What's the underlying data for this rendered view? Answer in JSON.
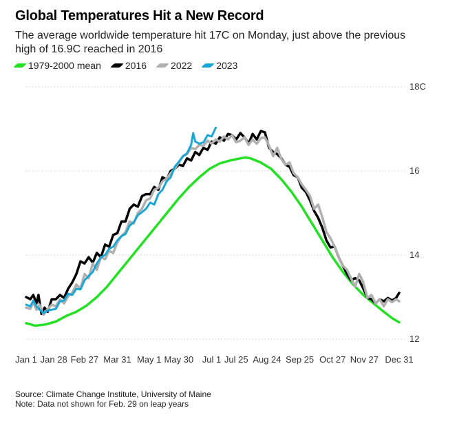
{
  "title": "Global Temperatures Hit a New Record",
  "subtitle": "The average worldwide temperature hit 17C on Monday, just above the previous high of 16.9C reached in 2016",
  "footnotes": {
    "source": "Source: Climate Change Institute, University of Maine",
    "note": "Note: Data not shown for Feb. 29 on leap years"
  },
  "colors": {
    "mean": "#22e022",
    "y2016": "#000000",
    "y2022": "#b0b0b0",
    "y2023": "#1aa6d4",
    "grid": "#c8c8c8"
  },
  "chart_data": {
    "type": "line",
    "title": "Global Temperatures Hit a New Record",
    "xlabel": "",
    "ylabel": "",
    "xlim": [
      1,
      365
    ],
    "ylim": [
      12,
      18
    ],
    "y_ticks": [
      {
        "value": 12,
        "label": "12"
      },
      {
        "value": 14,
        "label": "14"
      },
      {
        "value": 16,
        "label": "16"
      },
      {
        "value": 18,
        "label": "18C"
      }
    ],
    "x_ticks": [
      {
        "day": 1,
        "label": "Jan 1"
      },
      {
        "day": 28,
        "label": "Jan 28"
      },
      {
        "day": 58,
        "label": "Feb 27"
      },
      {
        "day": 90,
        "label": "Mar 31"
      },
      {
        "day": 121,
        "label": "May 1"
      },
      {
        "day": 150,
        "label": "May 30"
      },
      {
        "day": 182,
        "label": "Jul 1"
      },
      {
        "day": 206,
        "label": "Jul 25"
      },
      {
        "day": 236,
        "label": "Aug 24"
      },
      {
        "day": 268,
        "label": "Sep 25"
      },
      {
        "day": 300,
        "label": "Oct 27"
      },
      {
        "day": 331,
        "label": "Nov 27"
      },
      {
        "day": 365,
        "label": "Dec 31"
      }
    ],
    "grid": "horizontal dotted",
    "series": [
      {
        "name": "1979-2000 mean",
        "color_key": "mean",
        "points": [
          [
            1,
            12.38
          ],
          [
            10,
            12.32
          ],
          [
            20,
            12.35
          ],
          [
            30,
            12.42
          ],
          [
            40,
            12.55
          ],
          [
            50,
            12.65
          ],
          [
            60,
            12.8
          ],
          [
            70,
            13.0
          ],
          [
            80,
            13.25
          ],
          [
            90,
            13.55
          ],
          [
            100,
            13.85
          ],
          [
            110,
            14.15
          ],
          [
            120,
            14.45
          ],
          [
            130,
            14.75
          ],
          [
            140,
            15.05
          ],
          [
            150,
            15.35
          ],
          [
            160,
            15.62
          ],
          [
            170,
            15.85
          ],
          [
            180,
            16.05
          ],
          [
            190,
            16.18
          ],
          [
            200,
            16.25
          ],
          [
            210,
            16.3
          ],
          [
            215,
            16.32
          ],
          [
            220,
            16.3
          ],
          [
            230,
            16.2
          ],
          [
            240,
            16.05
          ],
          [
            250,
            15.8
          ],
          [
            260,
            15.5
          ],
          [
            270,
            15.15
          ],
          [
            280,
            14.75
          ],
          [
            290,
            14.35
          ],
          [
            300,
            13.95
          ],
          [
            310,
            13.6
          ],
          [
            320,
            13.3
          ],
          [
            330,
            13.05
          ],
          [
            340,
            12.85
          ],
          [
            350,
            12.65
          ],
          [
            358,
            12.5
          ],
          [
            365,
            12.4
          ]
        ]
      },
      {
        "name": "2016",
        "color_key": "y2016",
        "points": [
          [
            1,
            13.0
          ],
          [
            5,
            12.95
          ],
          [
            8,
            13.05
          ],
          [
            11,
            12.85
          ],
          [
            13,
            13.05
          ],
          [
            16,
            12.6
          ],
          [
            19,
            12.75
          ],
          [
            22,
            12.65
          ],
          [
            26,
            12.95
          ],
          [
            30,
            12.95
          ],
          [
            34,
            13.05
          ],
          [
            38,
            12.98
          ],
          [
            42,
            13.2
          ],
          [
            46,
            13.35
          ],
          [
            50,
            13.55
          ],
          [
            54,
            13.85
          ],
          [
            58,
            13.8
          ],
          [
            62,
            13.95
          ],
          [
            66,
            13.82
          ],
          [
            70,
            14.05
          ],
          [
            74,
            13.95
          ],
          [
            78,
            14.25
          ],
          [
            82,
            14.2
          ],
          [
            86,
            14.48
          ],
          [
            90,
            14.52
          ],
          [
            94,
            14.8
          ],
          [
            98,
            14.8
          ],
          [
            102,
            15.1
          ],
          [
            106,
            15.2
          ],
          [
            110,
            15.15
          ],
          [
            114,
            15.4
          ],
          [
            118,
            15.45
          ],
          [
            122,
            15.45
          ],
          [
            126,
            15.62
          ],
          [
            130,
            15.55
          ],
          [
            134,
            15.85
          ],
          [
            138,
            15.8
          ],
          [
            142,
            16.0
          ],
          [
            146,
            16.05
          ],
          [
            150,
            16.15
          ],
          [
            154,
            16.12
          ],
          [
            158,
            16.3
          ],
          [
            162,
            16.25
          ],
          [
            166,
            16.45
          ],
          [
            170,
            16.38
          ],
          [
            174,
            16.55
          ],
          [
            178,
            16.5
          ],
          [
            182,
            16.7
          ],
          [
            186,
            16.65
          ],
          [
            190,
            16.8
          ],
          [
            194,
            16.72
          ],
          [
            198,
            16.88
          ],
          [
            202,
            16.85
          ],
          [
            206,
            16.75
          ],
          [
            210,
            16.9
          ],
          [
            214,
            16.8
          ],
          [
            218,
            16.65
          ],
          [
            222,
            16.88
          ],
          [
            226,
            16.75
          ],
          [
            230,
            16.95
          ],
          [
            234,
            16.92
          ],
          [
            238,
            16.55
          ],
          [
            242,
            16.45
          ],
          [
            246,
            16.4
          ],
          [
            250,
            16.3
          ],
          [
            254,
            16.15
          ],
          [
            258,
            16.1
          ],
          [
            262,
            15.9
          ],
          [
            266,
            15.85
          ],
          [
            270,
            15.6
          ],
          [
            274,
            15.5
          ],
          [
            278,
            15.3
          ],
          [
            282,
            15.05
          ],
          [
            286,
            14.88
          ],
          [
            290,
            14.65
          ],
          [
            294,
            14.35
          ],
          [
            298,
            14.18
          ],
          [
            302,
            14.2
          ],
          [
            306,
            13.95
          ],
          [
            310,
            13.75
          ],
          [
            314,
            13.55
          ],
          [
            318,
            13.4
          ],
          [
            322,
            13.45
          ],
          [
            326,
            13.4
          ],
          [
            330,
            13.2
          ],
          [
            334,
            12.98
          ],
          [
            338,
            12.95
          ],
          [
            342,
            12.85
          ],
          [
            346,
            12.95
          ],
          [
            350,
            12.9
          ],
          [
            354,
            12.98
          ],
          [
            358,
            12.92
          ],
          [
            362,
            12.98
          ],
          [
            365,
            13.1
          ]
        ]
      },
      {
        "name": "2022",
        "color_key": "y2022",
        "points": [
          [
            1,
            12.75
          ],
          [
            5,
            12.72
          ],
          [
            8,
            12.88
          ],
          [
            11,
            12.7
          ],
          [
            14,
            12.82
          ],
          [
            18,
            12.58
          ],
          [
            22,
            12.72
          ],
          [
            26,
            12.82
          ],
          [
            30,
            12.78
          ],
          [
            34,
            12.95
          ],
          [
            38,
            12.85
          ],
          [
            42,
            13.02
          ],
          [
            46,
            13.1
          ],
          [
            50,
            13.3
          ],
          [
            54,
            13.2
          ],
          [
            58,
            13.55
          ],
          [
            62,
            13.45
          ],
          [
            66,
            13.8
          ],
          [
            70,
            13.65
          ],
          [
            74,
            13.95
          ],
          [
            78,
            13.9
          ],
          [
            82,
            14.1
          ],
          [
            86,
            14.05
          ],
          [
            90,
            14.3
          ],
          [
            94,
            14.45
          ],
          [
            98,
            14.55
          ],
          [
            102,
            14.8
          ],
          [
            106,
            14.75
          ],
          [
            110,
            15.0
          ],
          [
            114,
            15.1
          ],
          [
            118,
            15.3
          ],
          [
            122,
            15.35
          ],
          [
            126,
            15.55
          ],
          [
            130,
            15.6
          ],
          [
            134,
            15.75
          ],
          [
            138,
            15.82
          ],
          [
            142,
            15.95
          ],
          [
            146,
            16.05
          ],
          [
            150,
            16.2
          ],
          [
            154,
            16.35
          ],
          [
            158,
            16.4
          ],
          [
            162,
            16.55
          ],
          [
            166,
            16.52
          ],
          [
            170,
            16.62
          ],
          [
            174,
            16.6
          ],
          [
            178,
            16.72
          ],
          [
            182,
            16.65
          ],
          [
            186,
            16.75
          ],
          [
            190,
            16.7
          ],
          [
            194,
            16.82
          ],
          [
            198,
            16.75
          ],
          [
            202,
            16.85
          ],
          [
            206,
            16.68
          ],
          [
            210,
            16.72
          ],
          [
            214,
            16.8
          ],
          [
            218,
            16.62
          ],
          [
            222,
            16.75
          ],
          [
            226,
            16.65
          ],
          [
            230,
            16.78
          ],
          [
            234,
            16.8
          ],
          [
            238,
            16.6
          ],
          [
            242,
            16.35
          ],
          [
            246,
            16.55
          ],
          [
            250,
            16.28
          ],
          [
            254,
            16.15
          ],
          [
            258,
            16.2
          ],
          [
            262,
            15.95
          ],
          [
            266,
            15.85
          ],
          [
            270,
            15.68
          ],
          [
            274,
            15.55
          ],
          [
            278,
            15.4
          ],
          [
            282,
            15.1
          ],
          [
            286,
            15.2
          ],
          [
            290,
            14.9
          ],
          [
            294,
            14.55
          ],
          [
            298,
            14.4
          ],
          [
            302,
            14.2
          ],
          [
            306,
            13.95
          ],
          [
            310,
            13.75
          ],
          [
            314,
            13.65
          ],
          [
            318,
            13.45
          ],
          [
            322,
            13.25
          ],
          [
            326,
            13.55
          ],
          [
            330,
            13.35
          ],
          [
            334,
            12.98
          ],
          [
            338,
            13.05
          ],
          [
            342,
            12.85
          ],
          [
            346,
            12.95
          ],
          [
            350,
            12.78
          ],
          [
            354,
            12.95
          ],
          [
            358,
            12.88
          ],
          [
            362,
            12.95
          ],
          [
            365,
            12.9
          ]
        ]
      },
      {
        "name": "2023",
        "color_key": "y2023",
        "points": [
          [
            1,
            12.82
          ],
          [
            5,
            12.78
          ],
          [
            8,
            12.92
          ],
          [
            11,
            12.78
          ],
          [
            14,
            12.7
          ],
          [
            18,
            12.62
          ],
          [
            22,
            12.68
          ],
          [
            26,
            12.7
          ],
          [
            30,
            12.72
          ],
          [
            34,
            12.9
          ],
          [
            38,
            12.92
          ],
          [
            42,
            13.08
          ],
          [
            46,
            13.05
          ],
          [
            50,
            13.2
          ],
          [
            54,
            13.18
          ],
          [
            58,
            13.4
          ],
          [
            62,
            13.5
          ],
          [
            66,
            13.6
          ],
          [
            70,
            13.8
          ],
          [
            74,
            13.95
          ],
          [
            78,
            14.0
          ],
          [
            82,
            14.15
          ],
          [
            86,
            14.2
          ],
          [
            90,
            14.35
          ],
          [
            94,
            14.45
          ],
          [
            98,
            14.5
          ],
          [
            102,
            14.7
          ],
          [
            106,
            14.78
          ],
          [
            110,
            14.95
          ],
          [
            114,
            15.02
          ],
          [
            118,
            15.1
          ],
          [
            122,
            15.25
          ],
          [
            126,
            15.2
          ],
          [
            130,
            15.45
          ],
          [
            134,
            15.55
          ],
          [
            138,
            15.75
          ],
          [
            142,
            15.85
          ],
          [
            146,
            16.1
          ],
          [
            150,
            16.22
          ],
          [
            154,
            16.35
          ],
          [
            158,
            16.42
          ],
          [
            162,
            16.62
          ],
          [
            164,
            16.9
          ],
          [
            166,
            16.7
          ],
          [
            170,
            16.65
          ],
          [
            174,
            16.68
          ],
          [
            178,
            16.85
          ],
          [
            182,
            16.82
          ],
          [
            186,
            17.03
          ]
        ]
      }
    ]
  }
}
